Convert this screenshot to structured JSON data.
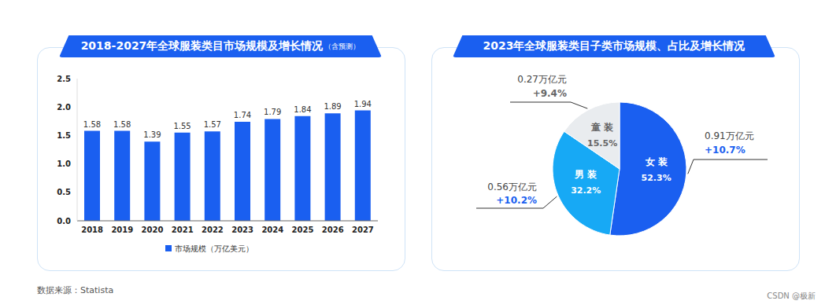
{
  "chart_data": [
    {
      "type": "bar",
      "title": "2018-2027年全球服装类目市场规模及增长情况",
      "subtitle": "（含预测）",
      "categories": [
        "2018",
        "2019",
        "2020",
        "2021",
        "2022",
        "2023",
        "2024",
        "2025",
        "2026",
        "2027"
      ],
      "series": [
        {
          "name": "市场规模（万亿美元）",
          "color": "#1a5ff0",
          "values": [
            1.58,
            1.58,
            1.39,
            1.55,
            1.57,
            1.74,
            1.79,
            1.84,
            1.89,
            1.94
          ]
        }
      ],
      "ylim": [
        0,
        2.5
      ],
      "yticks": [
        {
          "value": 0,
          "label": "0.0"
        },
        0.5,
        {
          "value": 1,
          "label": "1.0"
        },
        1.5,
        {
          "value": 2,
          "label": "2.0"
        },
        2.5
      ],
      "grid": false,
      "legend": "bottom",
      "data_labels": true
    },
    {
      "type": "pie",
      "title": "2023年全球服装类目子类市场规模、占比及增长情况",
      "categories": [
        "女 装",
        "男 装",
        "童 装"
      ],
      "values": [
        52.3,
        32.2,
        15.5
      ],
      "value_labels": [
        "52.3%",
        "32.2%",
        "15.5%"
      ],
      "colors": [
        "#1a5ff0",
        "#17a9f5",
        "#e9ecef"
      ],
      "market_size": [
        0.91,
        0.56,
        0.27
      ],
      "market_size_labels": [
        "0.91万亿元",
        "0.56万亿元",
        "0.27万亿元"
      ],
      "growth": [
        10.7,
        10.2,
        9.4
      ],
      "growth_labels": [
        "+10.7%",
        "+10.2%",
        "+9.4%"
      ],
      "data_labels": true
    }
  ],
  "source": "数据来源：Statista",
  "watermark": "CSDN @极新"
}
